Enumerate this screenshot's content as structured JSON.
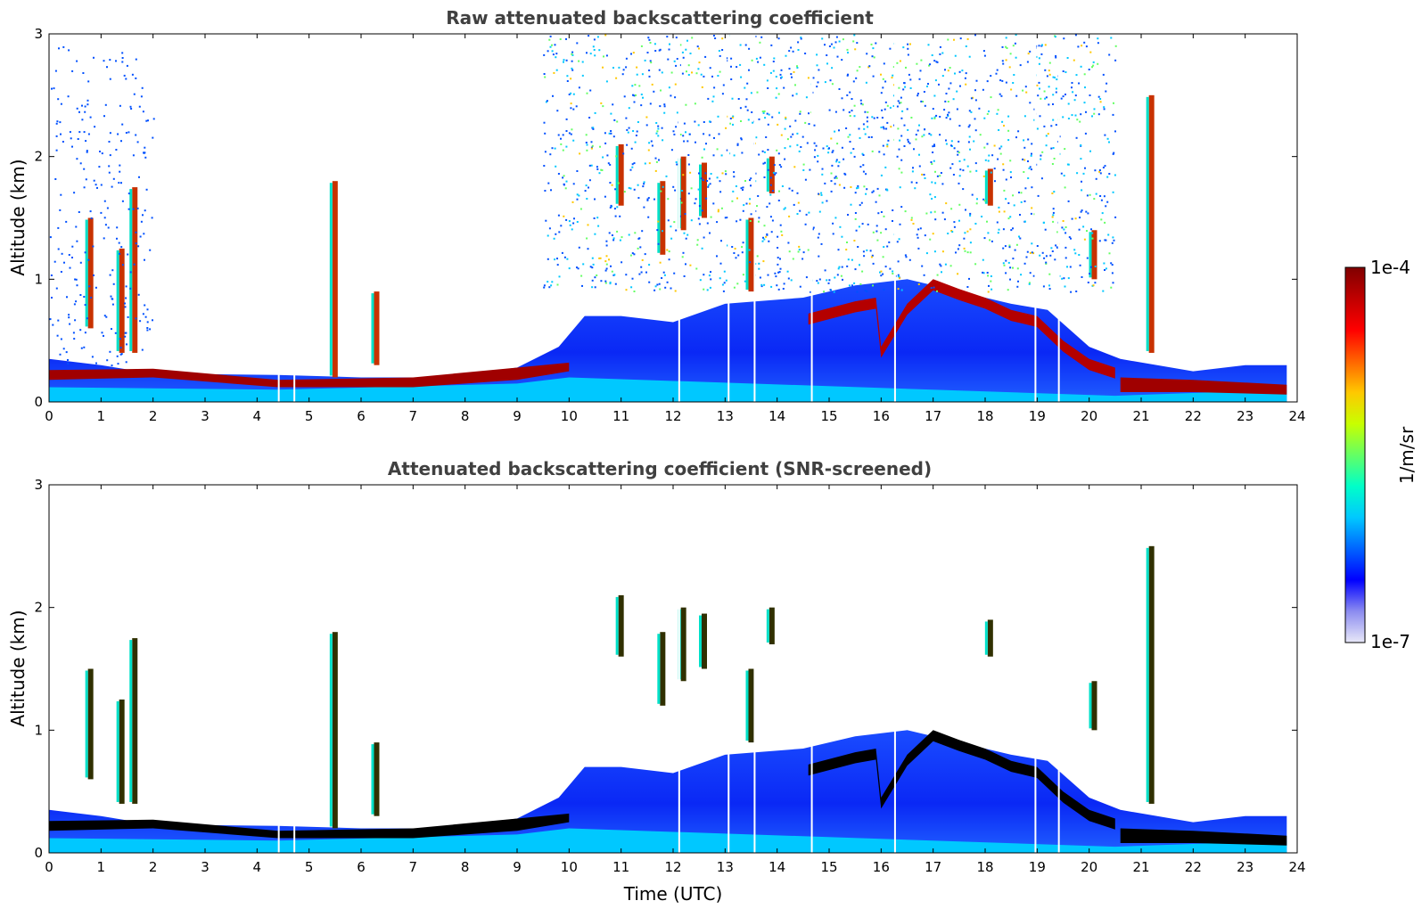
{
  "chart_data": [
    {
      "type": "heatmap",
      "title": "Raw attenuated backscattering coefficient",
      "xlabel": "",
      "ylabel": "Altitude (km)",
      "xlim": [
        0,
        24
      ],
      "ylim": [
        0,
        3
      ],
      "xticks": [
        "0",
        "1",
        "2",
        "3",
        "4",
        "5",
        "6",
        "7",
        "8",
        "9",
        "10",
        "11",
        "12",
        "13",
        "14",
        "15",
        "16",
        "17",
        "18",
        "19",
        "20",
        "21",
        "22",
        "23",
        "24"
      ],
      "yticks": [
        "0",
        "1",
        "2",
        "3"
      ],
      "screened": false
    },
    {
      "type": "heatmap",
      "title": "Attenuated backscattering coefficient (SNR-screened)",
      "xlabel": "Time (UTC)",
      "ylabel": "Altitude (km)",
      "xlim": [
        0,
        24
      ],
      "ylim": [
        0,
        3
      ],
      "xticks": [
        "0",
        "1",
        "2",
        "3",
        "4",
        "5",
        "6",
        "7",
        "8",
        "9",
        "10",
        "11",
        "12",
        "13",
        "14",
        "15",
        "16",
        "17",
        "18",
        "19",
        "20",
        "21",
        "22",
        "23",
        "24"
      ],
      "yticks": [
        "0",
        "1",
        "2",
        "3"
      ],
      "screened": true
    }
  ],
  "colorbar": {
    "label": "1/m/sr",
    "max_label": "1e-4",
    "min_label": "1e-7",
    "colors": [
      "#e8e8f8",
      "#8c8cf0",
      "#0000ff",
      "#0064ff",
      "#00c8ff",
      "#00ffc8",
      "#64ff64",
      "#c8ff00",
      "#ffc800",
      "#ff6400",
      "#ff0000",
      "#c00000",
      "#800000"
    ]
  }
}
